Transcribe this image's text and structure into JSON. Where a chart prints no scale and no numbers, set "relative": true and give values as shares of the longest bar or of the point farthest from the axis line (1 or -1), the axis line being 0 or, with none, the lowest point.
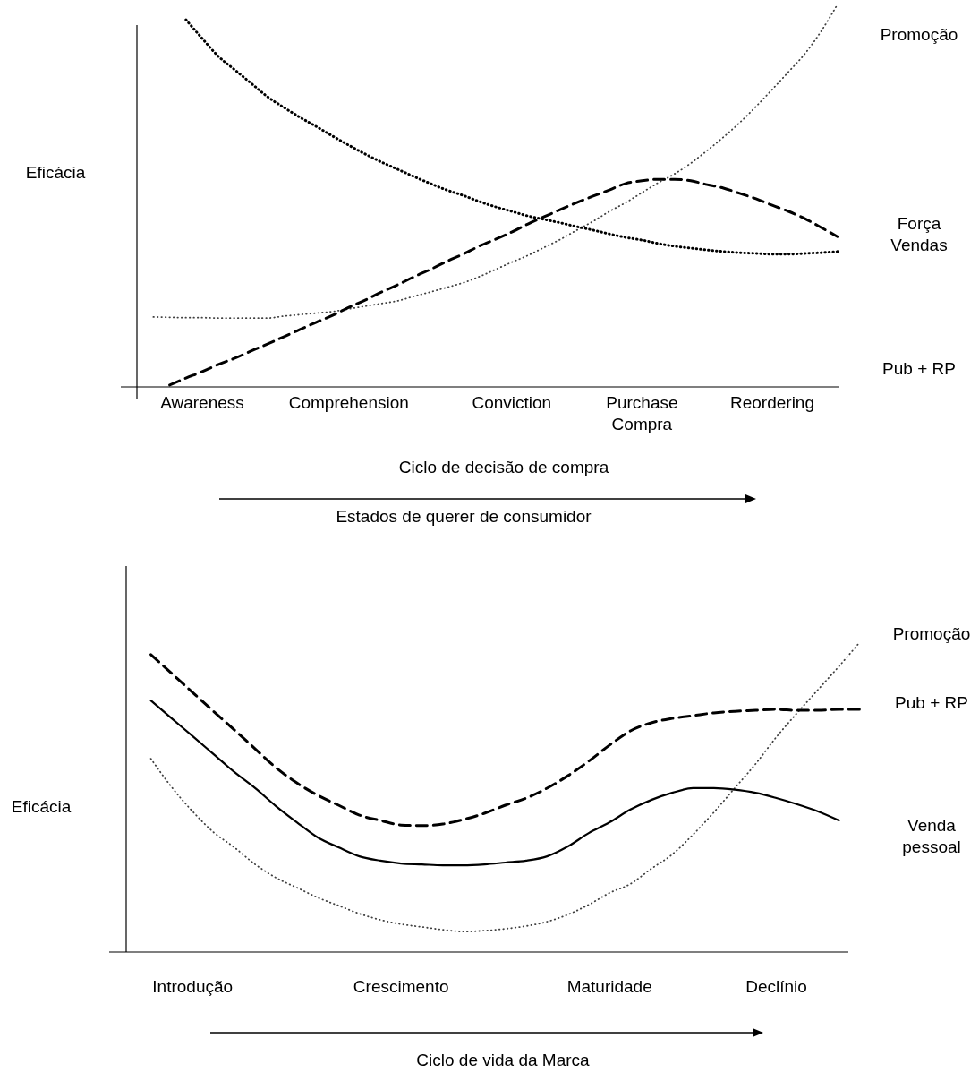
{
  "chart_data": [
    {
      "type": "line",
      "relative": true,
      "ylabel": "Eficácia",
      "xlabel": "Ciclo de decisão de compra",
      "annotations": [
        "Estados de querer de consumidor"
      ],
      "categories": [
        null,
        null,
        null,
        null,
        null,
        "Awareness",
        null,
        null,
        null,
        null,
        null,
        null,
        null,
        null,
        "Comprehension",
        null,
        null,
        null,
        null,
        null,
        null,
        null,
        null,
        null,
        "Conviction",
        null,
        null,
        null,
        null,
        null,
        null,
        null,
        "Purchase\nCompra",
        null,
        null,
        null,
        null,
        null,
        null,
        null,
        "Reordering",
        null,
        null,
        null,
        null
      ],
      "series": [
        {
          "name": "Promoção",
          "color": "#404040",
          "line_style": "dotted",
          "values": [
            null,
            null,
            0.183,
            0.182,
            0.181,
            0.181,
            0.18,
            0.18,
            0.18,
            0.18,
            0.185,
            0.189,
            0.193,
            0.197,
            0.204,
            0.211,
            0.218,
            0.225,
            0.237,
            0.248,
            0.26,
            0.272,
            0.288,
            0.307,
            0.326,
            0.344,
            0.365,
            0.386,
            0.41,
            0.433,
            0.459,
            0.482,
            0.508,
            0.534,
            0.557,
            0.585,
            0.618,
            0.653,
            0.691,
            0.733,
            0.778,
            0.824,
            0.871,
            0.93,
            1.0
          ]
        },
        {
          "name": "Pub + RP",
          "color": "#000000",
          "line_style": "dotted",
          "values": [
            null,
            null,
            null,
            null,
            0.96,
            0.911,
            0.864,
            0.829,
            0.794,
            0.759,
            0.731,
            0.705,
            0.681,
            0.656,
            0.632,
            0.609,
            0.588,
            0.569,
            0.55,
            0.532,
            0.515,
            0.501,
            0.485,
            0.471,
            0.459,
            0.447,
            0.438,
            0.429,
            0.419,
            0.41,
            0.4,
            0.391,
            0.384,
            0.375,
            0.368,
            0.363,
            0.358,
            0.354,
            0.351,
            0.349,
            0.347,
            0.347,
            0.349,
            0.351,
            0.354
          ]
        },
        {
          "name": "Força\nVendas",
          "color": "#000000",
          "line_style": "dashed",
          "values": [
            null,
            null,
            null,
            0.005,
            0.023,
            0.04,
            0.059,
            0.075,
            0.094,
            0.112,
            0.131,
            0.15,
            0.169,
            0.187,
            0.208,
            0.227,
            0.248,
            0.267,
            0.288,
            0.307,
            0.328,
            0.347,
            0.368,
            0.386,
            0.405,
            0.426,
            0.445,
            0.464,
            0.482,
            0.499,
            0.515,
            0.532,
            0.539,
            0.543,
            0.543,
            0.539,
            0.529,
            0.52,
            0.506,
            0.492,
            0.475,
            0.459,
            0.44,
            0.417,
            0.393
          ]
        }
      ]
    },
    {
      "type": "line",
      "relative": true,
      "ylabel": "Eficácia",
      "xlabel": "Ciclo de vida da Marca",
      "categories": [
        null,
        null,
        null,
        null,
        "Introdução",
        null,
        null,
        null,
        null,
        null,
        null,
        null,
        null,
        null,
        "Crescimento",
        null,
        null,
        null,
        null,
        null,
        null,
        null,
        null,
        null,
        "Maturidade",
        null,
        null,
        null,
        null,
        null,
        null,
        null,
        "Declínio",
        null,
        null,
        null,
        null
      ],
      "series": [
        {
          "name": "Promoção",
          "color": "#404040",
          "line_style": "dotted",
          "values": [
            null,
            null,
            0.624,
            0.532,
            0.454,
            0.387,
            0.338,
            0.283,
            0.24,
            0.208,
            0.176,
            0.15,
            0.124,
            0.104,
            0.09,
            0.081,
            0.072,
            0.066,
            0.069,
            0.075,
            0.084,
            0.098,
            0.121,
            0.153,
            0.191,
            0.22,
            0.269,
            0.315,
            0.379,
            0.451,
            0.529,
            0.607,
            0.694,
            0.772,
            0.847,
            0.922,
            1.0
          ]
        },
        {
          "name": "Pub + RP",
          "color": "#000000",
          "line_style": "dashed",
          "values": [
            null,
            null,
            0.96,
            0.899,
            0.838,
            0.777,
            0.717,
            0.656,
            0.595,
            0.546,
            0.506,
            0.474,
            0.442,
            0.425,
            0.41,
            0.408,
            0.413,
            0.428,
            0.448,
            0.474,
            0.497,
            0.529,
            0.569,
            0.616,
            0.668,
            0.714,
            0.74,
            0.754,
            0.763,
            0.772,
            0.777,
            0.78,
            0.783,
            0.78,
            0.78,
            0.783,
            0.783
          ]
        },
        {
          "name": "Venda\npessoal",
          "color": "#000000",
          "line_style": "solid",
          "values": [
            null,
            null,
            0.812,
            0.754,
            0.697,
            0.639,
            0.581,
            0.529,
            0.471,
            0.419,
            0.37,
            0.338,
            0.309,
            0.295,
            0.286,
            0.283,
            0.28,
            0.28,
            0.283,
            0.289,
            0.295,
            0.309,
            0.341,
            0.384,
            0.419,
            0.46,
            0.491,
            0.514,
            0.529,
            0.529,
            0.524,
            0.514,
            0.497,
            0.477,
            0.454,
            0.425,
            null
          ]
        }
      ]
    }
  ]
}
